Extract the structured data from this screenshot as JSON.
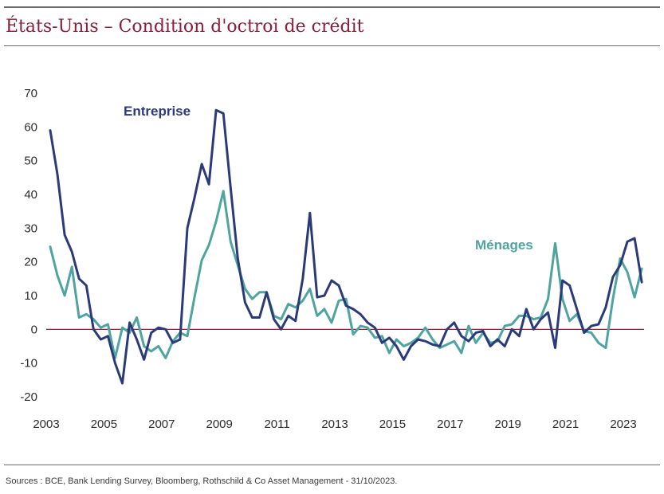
{
  "header": {
    "title": "États-Unis – Condition d'octroi de crédit"
  },
  "footer": {
    "source": "Sources : BCE, Bank Lending Survey, Bloomberg, Rothschild & Co Asset Management  - 31/10/2023."
  },
  "colors": {
    "title": "#8a1f3a",
    "entreprise": "#2b3a78",
    "menages": "#4fa3a0",
    "zero_line": "#8a1f3a"
  },
  "chart_data": {
    "type": "line",
    "title": "États-Unis – Condition d'octroi de crédit",
    "xlabel": "",
    "ylabel": "",
    "xlim": [
      2003,
      2023.75
    ],
    "ylim": [
      -22,
      72
    ],
    "x_ticks": [
      2003,
      2005,
      2007,
      2009,
      2011,
      2013,
      2015,
      2017,
      2019,
      2021,
      2023
    ],
    "y_ticks": [
      -20,
      -10,
      0,
      10,
      20,
      30,
      40,
      50,
      60,
      70
    ],
    "grid": false,
    "reference_line": 0,
    "series": [
      {
        "name": "Entreprise",
        "points": [
          [
            2003.0,
            59
          ],
          [
            2003.25,
            46
          ],
          [
            2003.5,
            28
          ],
          [
            2003.75,
            23
          ],
          [
            2004.0,
            15
          ],
          [
            2004.25,
            13
          ],
          [
            2004.5,
            0
          ],
          [
            2004.75,
            -3
          ],
          [
            2005.0,
            -2
          ],
          [
            2005.25,
            -10
          ],
          [
            2005.5,
            -16
          ],
          [
            2005.75,
            2
          ],
          [
            2006.0,
            -3
          ],
          [
            2006.25,
            -9
          ],
          [
            2006.5,
            -1
          ],
          [
            2006.75,
            0.5
          ],
          [
            2007.0,
            0
          ],
          [
            2007.25,
            -4
          ],
          [
            2007.5,
            -3
          ],
          [
            2007.75,
            30
          ],
          [
            2008.0,
            39
          ],
          [
            2008.25,
            49
          ],
          [
            2008.5,
            43
          ],
          [
            2008.75,
            65
          ],
          [
            2009.0,
            64
          ],
          [
            2009.25,
            42
          ],
          [
            2009.5,
            21
          ],
          [
            2009.75,
            8
          ],
          [
            2010.0,
            3.5
          ],
          [
            2010.25,
            3.5
          ],
          [
            2010.5,
            11
          ],
          [
            2010.75,
            3
          ],
          [
            2011.0,
            0
          ],
          [
            2011.25,
            4
          ],
          [
            2011.5,
            2.5
          ],
          [
            2011.75,
            15
          ],
          [
            2012.0,
            34.5
          ],
          [
            2012.25,
            9.5
          ],
          [
            2012.5,
            10
          ],
          [
            2012.75,
            14.5
          ],
          [
            2013.0,
            13
          ],
          [
            2013.25,
            7
          ],
          [
            2013.5,
            6
          ],
          [
            2013.75,
            4.5
          ],
          [
            2014.0,
            2
          ],
          [
            2014.25,
            0.5
          ],
          [
            2014.5,
            -4
          ],
          [
            2014.75,
            -2.5
          ],
          [
            2015.0,
            -5
          ],
          [
            2015.25,
            -9
          ],
          [
            2015.5,
            -5
          ],
          [
            2015.75,
            -3
          ],
          [
            2016.0,
            -3.5
          ],
          [
            2016.25,
            -4.5
          ],
          [
            2016.5,
            -5
          ],
          [
            2016.75,
            0
          ],
          [
            2017.0,
            2
          ],
          [
            2017.25,
            -2
          ],
          [
            2017.5,
            -3.5
          ],
          [
            2017.75,
            -1
          ],
          [
            2018.0,
            -0.5
          ],
          [
            2018.25,
            -5
          ],
          [
            2018.5,
            -3
          ],
          [
            2018.75,
            -5
          ],
          [
            2019.0,
            0
          ],
          [
            2019.25,
            -2
          ],
          [
            2019.5,
            6
          ],
          [
            2019.75,
            0
          ],
          [
            2020.0,
            3
          ],
          [
            2020.25,
            5
          ],
          [
            2020.5,
            -5.5
          ],
          [
            2020.75,
            14.5
          ],
          [
            2021.0,
            13
          ],
          [
            2021.25,
            6
          ],
          [
            2021.5,
            -1
          ],
          [
            2021.75,
            1
          ],
          [
            2022.0,
            1.5
          ],
          [
            2022.25,
            6.5
          ],
          [
            2022.5,
            15.5
          ],
          [
            2022.75,
            19
          ],
          [
            2023.0,
            26
          ],
          [
            2023.25,
            27
          ],
          [
            2023.5,
            14
          ]
        ]
      },
      {
        "name": "Ménages",
        "points": [
          [
            2003.0,
            24.5
          ],
          [
            2003.25,
            16
          ],
          [
            2003.5,
            10
          ],
          [
            2003.75,
            18.5
          ],
          [
            2004.0,
            3.5
          ],
          [
            2004.25,
            4.5
          ],
          [
            2004.5,
            3
          ],
          [
            2004.75,
            0.5
          ],
          [
            2005.0,
            1.5
          ],
          [
            2005.25,
            -8.5
          ],
          [
            2005.5,
            0.5
          ],
          [
            2005.75,
            -1
          ],
          [
            2006.0,
            3.5
          ],
          [
            2006.25,
            -5
          ],
          [
            2006.5,
            -6.5
          ],
          [
            2006.75,
            -5
          ],
          [
            2007.0,
            -8.5
          ],
          [
            2007.25,
            -3.5
          ],
          [
            2007.5,
            -1
          ],
          [
            2007.75,
            -2
          ],
          [
            2008.0,
            9.5
          ],
          [
            2008.25,
            20.5
          ],
          [
            2008.5,
            25
          ],
          [
            2008.75,
            32
          ],
          [
            2009.0,
            41
          ],
          [
            2009.25,
            26
          ],
          [
            2009.5,
            19
          ],
          [
            2009.75,
            12
          ],
          [
            2010.0,
            9
          ],
          [
            2010.25,
            11
          ],
          [
            2010.5,
            11
          ],
          [
            2010.75,
            4
          ],
          [
            2011.0,
            3
          ],
          [
            2011.25,
            7.5
          ],
          [
            2011.5,
            6.5
          ],
          [
            2011.75,
            8.5
          ],
          [
            2012.0,
            12
          ],
          [
            2012.25,
            4
          ],
          [
            2012.5,
            6
          ],
          [
            2012.75,
            2
          ],
          [
            2013.0,
            8.5
          ],
          [
            2013.25,
            9
          ],
          [
            2013.5,
            -1.5
          ],
          [
            2013.75,
            1
          ],
          [
            2014.0,
            0.5
          ],
          [
            2014.25,
            -2.5
          ],
          [
            2014.5,
            -2
          ],
          [
            2014.75,
            -7
          ],
          [
            2015.0,
            -3
          ],
          [
            2015.25,
            -5
          ],
          [
            2015.5,
            -4
          ],
          [
            2015.75,
            -2.5
          ],
          [
            2016.0,
            0.5
          ],
          [
            2016.25,
            -3
          ],
          [
            2016.5,
            -5.5
          ],
          [
            2016.75,
            -4.5
          ],
          [
            2017.0,
            -3.5
          ],
          [
            2017.25,
            -7
          ],
          [
            2017.5,
            1
          ],
          [
            2017.75,
            -4
          ],
          [
            2018.0,
            -1
          ],
          [
            2018.25,
            -4
          ],
          [
            2018.5,
            -3.5
          ],
          [
            2018.75,
            1
          ],
          [
            2019.0,
            1.5
          ],
          [
            2019.25,
            4
          ],
          [
            2019.5,
            4
          ],
          [
            2019.75,
            3
          ],
          [
            2020.0,
            3.5
          ],
          [
            2020.25,
            9
          ],
          [
            2020.5,
            25.5
          ],
          [
            2020.75,
            9
          ],
          [
            2021.0,
            2.5
          ],
          [
            2021.25,
            4.5
          ],
          [
            2021.5,
            -0.5
          ],
          [
            2021.75,
            -1
          ],
          [
            2022.0,
            -4
          ],
          [
            2022.25,
            -5.5
          ],
          [
            2022.5,
            9
          ],
          [
            2022.75,
            21
          ],
          [
            2023.0,
            17
          ],
          [
            2023.25,
            9.5
          ],
          [
            2023.5,
            18
          ]
        ]
      }
    ]
  }
}
